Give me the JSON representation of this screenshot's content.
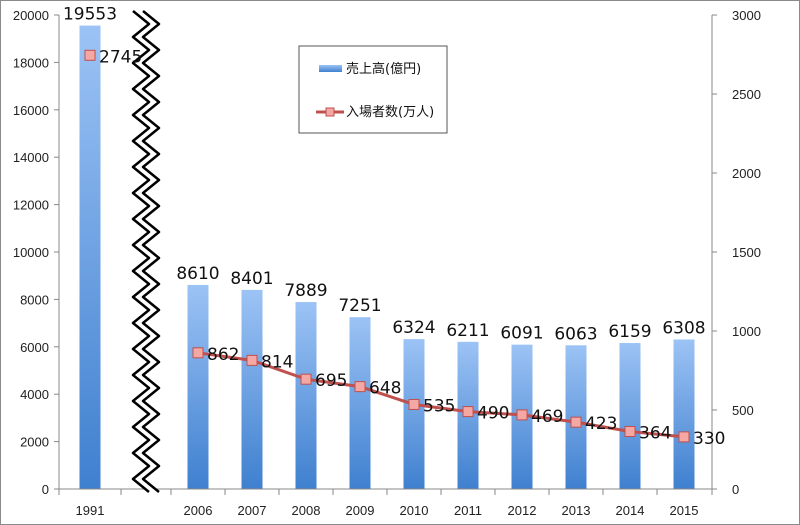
{
  "chart_data": {
    "type": "bar",
    "categories": [
      "1991",
      "2006",
      "2007",
      "2008",
      "2009",
      "2010",
      "2011",
      "2012",
      "2013",
      "2014",
      "2015"
    ],
    "series": [
      {
        "name": "売上高(億円)",
        "type": "bar",
        "axis": "left",
        "values": [
          19553,
          8610,
          8401,
          7889,
          7251,
          6324,
          6211,
          6091,
          6063,
          6159,
          6308
        ],
        "labels": [
          "19553",
          "8610",
          "8401",
          "7889",
          "7251",
          "6324",
          "6211",
          "6091",
          "6063",
          "6159",
          "6308"
        ],
        "color": "#5b9bd5"
      },
      {
        "name": "入場者数(万人)",
        "type": "line",
        "axis": "right",
        "values": [
          2745,
          862,
          814,
          695,
          648,
          535,
          490,
          469,
          423,
          364,
          330
        ],
        "labels": [
          "2745",
          "862",
          "814",
          "695",
          "648",
          "535",
          "490",
          "469",
          "423",
          "364",
          "330"
        ],
        "color": "#c0504d"
      }
    ],
    "y_left": {
      "range": [
        0,
        20000
      ],
      "ticks": [
        "0",
        "2000",
        "4000",
        "6000",
        "8000",
        "10000",
        "12000",
        "14000",
        "16000",
        "18000",
        "20000"
      ]
    },
    "y_right": {
      "range": [
        0,
        3000
      ],
      "ticks": [
        "0",
        "500",
        "1000",
        "1500",
        "2000",
        "2500",
        "3000"
      ]
    },
    "axis_break": "between 1991 and 2006",
    "legend_position": "top-center",
    "grid": false
  }
}
